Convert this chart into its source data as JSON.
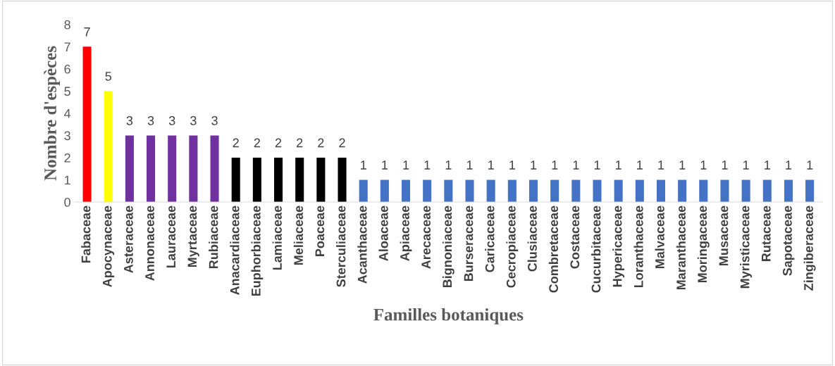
{
  "chart_data": {
    "type": "bar",
    "xlabel": "Familles botaniques",
    "ylabel": "Nombre d'espèces",
    "categories": [
      "Fabaceae",
      "Apocynaceae",
      "Asteraceae",
      "Annonaceae",
      "Lauraceae",
      "Myrtaceae",
      "Rubiaceae",
      "Anacardiaceae",
      "Euphorbiaceae",
      "Lamiaceae",
      "Meliaceae",
      "Poaceae",
      "Sterculiaceae",
      "Acanthaceae",
      "Aloaceae",
      "Apiaceae",
      "Arecaceae",
      "Bignoniaceae",
      "Burseraceae",
      "Caricaceae",
      "Cecropiaceae",
      "Clusiaceae",
      "Combretaceae",
      "Costaceae",
      "Cucurbitaceae",
      "Hypericaceae",
      "Loranthaceae",
      "Malvaceae",
      "Maranthaceae",
      "Moringaceae",
      "Musaceae",
      "Myristicaceae",
      "Rutaceae",
      "Sapotaceae",
      "Zingiberaceae"
    ],
    "values": [
      7,
      5,
      3,
      3,
      3,
      3,
      3,
      2,
      2,
      2,
      2,
      2,
      2,
      1,
      1,
      1,
      1,
      1,
      1,
      1,
      1,
      1,
      1,
      1,
      1,
      1,
      1,
      1,
      1,
      1,
      1,
      1,
      1,
      1,
      1
    ],
    "colors": [
      "#ff0000",
      "#ffff00",
      "#7030a0",
      "#7030a0",
      "#7030a0",
      "#7030a0",
      "#7030a0",
      "#000000",
      "#000000",
      "#000000",
      "#000000",
      "#000000",
      "#000000",
      "#4472c4",
      "#4472c4",
      "#4472c4",
      "#4472c4",
      "#4472c4",
      "#4472c4",
      "#4472c4",
      "#4472c4",
      "#4472c4",
      "#4472c4",
      "#4472c4",
      "#4472c4",
      "#4472c4",
      "#4472c4",
      "#4472c4",
      "#4472c4",
      "#4472c4",
      "#4472c4",
      "#4472c4",
      "#4472c4",
      "#4472c4",
      "#4472c4"
    ],
    "ylim": [
      0,
      8
    ],
    "yticks": [
      0,
      1,
      2,
      3,
      4,
      5,
      6,
      7,
      8
    ],
    "data_labels": true,
    "grid": false,
    "legend": false
  }
}
